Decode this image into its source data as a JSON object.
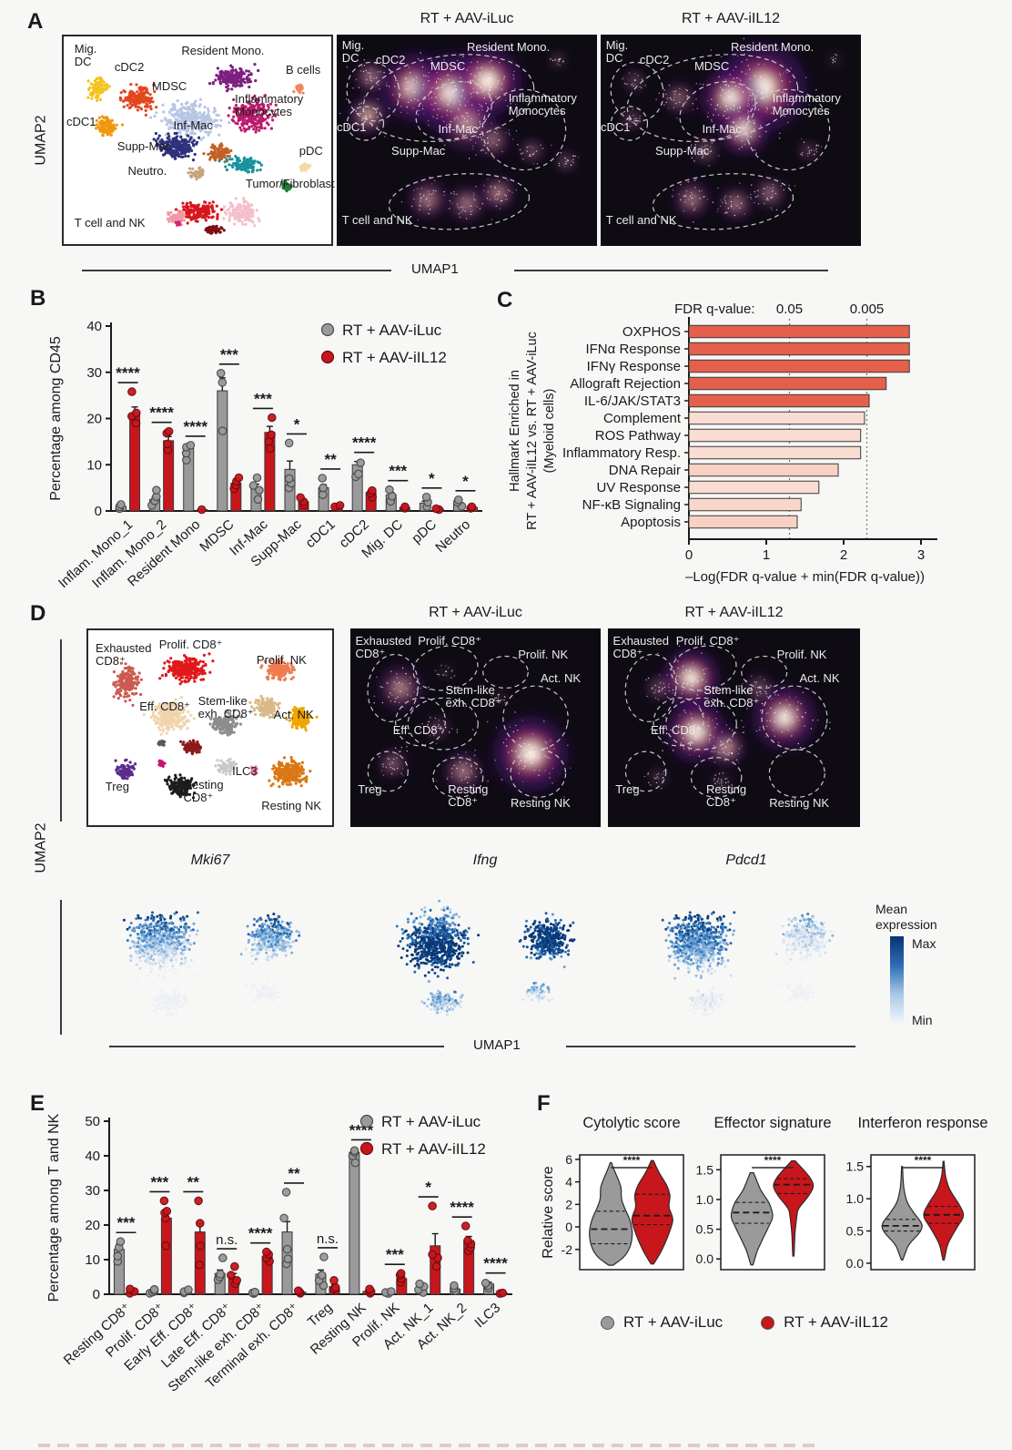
{
  "panelA": {
    "label": "A",
    "umap1": "UMAP1",
    "umap2": "UMAP2",
    "condition_titles": [
      "RT + AAV-iLuc",
      "RT + AAV-iIL12"
    ],
    "clusters": [
      {
        "label": "Mig. DC",
        "color": "#f2c41d"
      },
      {
        "label": "cDC2",
        "color": "#e2471f"
      },
      {
        "label": "Resident Mono.",
        "color": "#7e1f82"
      },
      {
        "label": "B cells",
        "color": "#ef8663"
      },
      {
        "label": "MDSC",
        "color": "#b9c5e4"
      },
      {
        "label": "Inflammatory Monocytes",
        "color": "#bc1a6c"
      },
      {
        "label": "cDC1",
        "color": "#f1970f"
      },
      {
        "label": "Inf-Mac",
        "color": "#c06026"
      },
      {
        "label": "Supp-Mac",
        "color": "#30317e"
      },
      {
        "label": "pDC",
        "color": "#f2d9a8"
      },
      {
        "label": "Neutro.",
        "color": "#c7a37b"
      },
      {
        "label": "Tumor/Fibroblast",
        "color": "#f4bfca"
      },
      {
        "label": "T cell and NK",
        "color": "#d8161e"
      }
    ]
  },
  "panelD": {
    "label": "D",
    "umap1": "UMAP1",
    "umap2": "UMAP2",
    "condition_titles": [
      "RT + AAV-iLuc",
      "RT + AAV-iIL12"
    ],
    "clusters": [
      {
        "label": "Exhausted CD8⁺",
        "color": "#cb5a52"
      },
      {
        "label": "Prolif. CD8⁺",
        "color": "#e0191c"
      },
      {
        "label": "Prolif. NK",
        "color": "#ef7b50"
      },
      {
        "label": "Eff. CD8⁺",
        "color": "#f0d4ab"
      },
      {
        "label": "Stem-like exh. CD8⁺",
        "color": "#8d8d8d"
      },
      {
        "label": "Act. NK",
        "color": "#f0a500"
      },
      {
        "label": "Treg",
        "color": "#5a2c8c"
      },
      {
        "label": "Resting CD8⁺",
        "color": "#1c1c1c"
      },
      {
        "label": "ILC3",
        "color": "#c9c9c9"
      },
      {
        "label": "Resting NK",
        "color": "#d97814"
      }
    ],
    "features": [
      "Mki67",
      "Ifng",
      "Pdcd1"
    ],
    "colorbar": {
      "title": "Mean expression",
      "max": "Max",
      "min": "Min"
    }
  },
  "chart_data": [
    {
      "id": "myeloid_composition",
      "panel_label": "B",
      "type": "bar",
      "ylabel": "Percentage among CD45",
      "ylim": [
        0,
        40
      ],
      "yticks": [
        0,
        10,
        20,
        30,
        40
      ],
      "legend": [
        "RT + AAV-iLuc",
        "RT + AAV-iIL12"
      ],
      "colors": [
        "#9a9a9a",
        "#c8161d"
      ],
      "categories": [
        "Inflam. Mono_1",
        "Inflam. Mono_2",
        "Resident Mono",
        "MDSC",
        "Inf-Mac",
        "Supp-Mac",
        "cDC1",
        "cDC2",
        "Mig. DC",
        "pDC",
        "Neutro"
      ],
      "series": [
        {
          "name": "RT + AAV-iLuc",
          "values": [
            1,
            2.5,
            13.5,
            26,
            5,
            9,
            5,
            10,
            3.5,
            1.7,
            1.8
          ],
          "errors": [
            0.3,
            0.6,
            0.6,
            2.8,
            0.8,
            1.8,
            0.7,
            0.7,
            0.5,
            0.4,
            0.3
          ],
          "dots": [
            [
              0.5,
              0.9,
              1.4
            ],
            [
              1.2,
              2.2,
              3.1,
              4.5
            ],
            [
              11,
              12.5,
              13.8,
              14.2
            ],
            [
              17.3,
              27.8,
              29.8
            ],
            [
              2.5,
              4.5,
              5.5,
              7.2
            ],
            [
              5,
              6,
              7,
              14.7
            ],
            [
              3.5,
              5,
              7.1
            ],
            [
              7.4,
              8,
              10.4
            ],
            [
              2.1,
              3.2,
              4.6
            ],
            [
              0.9,
              1.9,
              3
            ],
            [
              1,
              1.9,
              2.4
            ]
          ]
        },
        {
          "name": "RT + AAV-iIL12",
          "values": [
            21,
            15.2,
            0.3,
            6,
            17,
            2,
            1,
            4,
            0.8,
            0.4,
            0.8
          ],
          "errors": [
            1.5,
            0.9,
            0.1,
            0.5,
            1.3,
            0.4,
            0.2,
            0.5,
            0.2,
            0.1,
            0.2
          ],
          "dots": [
            [
              19,
              20.5,
              21.2,
              25.8
            ],
            [
              13.2,
              14.5,
              16.8,
              17.2
            ],
            [
              0.3
            ],
            [
              4.8,
              5.6,
              6.4,
              7.2
            ],
            [
              13.5,
              15,
              16.5,
              20.2
            ],
            [
              1.3,
              2,
              2.9
            ],
            [
              0.9,
              1.2
            ],
            [
              3,
              3.8,
              4.4
            ],
            [
              0.6,
              0.9
            ],
            [
              0.3,
              0.5
            ],
            [
              0.6,
              0.9
            ]
          ]
        }
      ],
      "significance": [
        "****",
        "****",
        "****",
        "***",
        "***",
        "*",
        "**",
        "****",
        "***",
        "*",
        "*"
      ]
    },
    {
      "id": "hallmark_enrichment",
      "panel_label": "C",
      "type": "bar_h",
      "ylabel_lines": [
        "Hallmark Enriched in",
        "RT + AAV-iIL12 vs. RT + AAV-iLuc",
        "(Myeloid cells)"
      ],
      "xlabel": "–Log(FDR q-value + min(FDR q-value))",
      "xlim": [
        0,
        3
      ],
      "xticks": [
        0,
        1,
        2,
        3
      ],
      "top_axis": {
        "label": "FDR q-value:",
        "ticks": [
          {
            "t": "0.05",
            "v": 1.3
          },
          {
            "t": "0.005",
            "v": 2.3
          }
        ]
      },
      "categories": [
        "OXPHOS",
        "IFNα Response",
        "IFNγ Response",
        "Allograft Rejection",
        "IL-6/JAK/STAT3",
        "Complement",
        "ROS Pathway",
        "Inflammatory Resp.",
        "DNA Repair",
        "UV Response",
        "NF-κB Signaling",
        "Apoptosis"
      ],
      "values": [
        2.85,
        2.85,
        2.85,
        2.55,
        2.33,
        2.27,
        2.22,
        2.22,
        1.93,
        1.68,
        1.45,
        1.4
      ],
      "bar_colors": [
        "#e4604a",
        "#e4604a",
        "#e4604a",
        "#e4604a",
        "#e4604a",
        "#f9ddd2",
        "#f9ddd2",
        "#f9ddd2",
        "#f7d2c2",
        "#f9ddd2",
        "#f9d8cb",
        "#f7d2c2"
      ]
    },
    {
      "id": "tnk_composition",
      "panel_label": "E",
      "type": "bar",
      "ylabel": "Percentage among T and NK",
      "ylim": [
        0,
        50
      ],
      "yticks": [
        0,
        10,
        20,
        30,
        40,
        50
      ],
      "legend": [
        "RT + AAV-iLuc",
        "RT + AAV-iIL12"
      ],
      "colors": [
        "#9a9a9a",
        "#c8161d"
      ],
      "categories": [
        "Resting CD8⁺",
        "Prolif. CD8⁺",
        "Early Eff. CD8⁺",
        "Late Eff. CD8⁺",
        "Stem-like exh. CD8⁺",
        "Terminal exh. CD8⁺",
        "Treg",
        "Resting NK",
        "Prolif. NK",
        "Act. NK_1",
        "Act. NK_2",
        "ILC3"
      ],
      "series": [
        {
          "name": "RT + AAV-iLuc",
          "values": [
            13,
            0.5,
            0.8,
            6,
            0.3,
            18,
            5.8,
            41,
            0.4,
            1,
            1.5,
            3
          ],
          "errors": [
            1.5,
            0.2,
            0.2,
            1,
            0.1,
            3,
            1.2,
            1,
            0.15,
            0.5,
            0.4,
            0.5
          ],
          "dots": [
            [
              9.5,
              11,
              13.5,
              15.2
            ],
            [
              0.3,
              0.6,
              1,
              1.4
            ],
            [
              0.4,
              0.8,
              1.3
            ],
            [
              4.2,
              5,
              5.8,
              10.5
            ],
            [
              0.2,
              0.4,
              0.6
            ],
            [
              8.8,
              10.2,
              13,
              22,
              29.5
            ],
            [
              2.5,
              4,
              5.5,
              10.8
            ],
            [
              38,
              40,
              41,
              41.5
            ],
            [
              0.2,
              0.5,
              0.8
            ],
            [
              0.5,
              1.3,
              2.2,
              3
            ],
            [
              1,
              1.7,
              2.5
            ],
            [
              1.8,
              2.5,
              3.2
            ]
          ]
        },
        {
          "name": "RT + AAV-iIL12",
          "values": [
            0.8,
            22,
            18,
            5,
            11,
            0.6,
            2.2,
            0.8,
            4.5,
            14,
            15.5,
            0.3
          ],
          "errors": [
            0.3,
            1.5,
            2.5,
            1,
            0.8,
            0.2,
            0.5,
            0.3,
            0.6,
            3.5,
            1.2,
            0.1
          ],
          "dots": [
            [
              0.3,
              0.8,
              1.5
            ],
            [
              14,
              22,
              23.5,
              24,
              27
            ],
            [
              8.5,
              14,
              20.5,
              27
            ],
            [
              3,
              4,
              5.5,
              8
            ],
            [
              9.5,
              10.5,
              11.5,
              12.2
            ],
            [
              0.3,
              0.6,
              1
            ],
            [
              1,
              1.5,
              2,
              4
            ],
            [
              0.3,
              0.8,
              1.5
            ],
            [
              3.5,
              4.5,
              5.5,
              6
            ],
            [
              8,
              10.5,
              11.5,
              25.5
            ],
            [
              12.5,
              13.5,
              14.5,
              15.5,
              19.7
            ],
            [
              0.2,
              0.4
            ]
          ]
        }
      ],
      "significance": [
        "***",
        "***",
        "**",
        "n.s.",
        "****",
        "**",
        "n.s.",
        "****",
        "***",
        "*",
        "****",
        "****"
      ]
    },
    {
      "id": "signature_scores",
      "panel_label": "F",
      "type": "violin",
      "ylabel": "Relative score",
      "legend": [
        "RT + AAV-iLuc",
        "RT + AAV-iIL12"
      ],
      "colors": [
        "#9a9a9a",
        "#c8161d"
      ],
      "plots": [
        {
          "title": "Cytolytic score",
          "sig": "****",
          "ylim": [
            -3.8,
            6.4
          ],
          "yticks": [
            {
              "v": -2,
              "t": "-2"
            },
            {
              "v": 0,
              "t": "0"
            },
            {
              "v": 2,
              "t": "2"
            },
            {
              "v": 4,
              "t": "4"
            },
            {
              "v": 6,
              "t": "6"
            }
          ],
          "violins": [
            {
              "median": -0.2,
              "q1": -1.5,
              "q3": 1.4,
              "profile": [
                [
                  -3.4,
                  0.1
                ],
                [
                  -2.6,
                  0.7
                ],
                [
                  -1.5,
                  0.95
                ],
                [
                  -0.3,
                  1.0
                ],
                [
                  0.8,
                  0.85
                ],
                [
                  1.8,
                  0.6
                ],
                [
                  2.6,
                  0.45
                ],
                [
                  3.5,
                  0.5
                ],
                [
                  4.4,
                  0.3
                ],
                [
                  5.2,
                  0.12
                ],
                [
                  5.7,
                  0.03
                ]
              ]
            },
            {
              "median": 1.0,
              "q1": 0.2,
              "q3": 2.9,
              "profile": [
                [
                  -3.3,
                  0.06
                ],
                [
                  -2.4,
                  0.35
                ],
                [
                  -1.4,
                  0.6
                ],
                [
                  -0.4,
                  0.8
                ],
                [
                  0.8,
                  1.0
                ],
                [
                  1.8,
                  0.7
                ],
                [
                  2.8,
                  0.85
                ],
                [
                  3.8,
                  0.65
                ],
                [
                  4.8,
                  0.3
                ],
                [
                  5.9,
                  0.05
                ]
              ]
            }
          ]
        },
        {
          "title": "Effector signature",
          "sig": "****",
          "ylim": [
            -0.18,
            1.75
          ],
          "yticks": [
            {
              "v": 0,
              "t": "0.0"
            },
            {
              "v": 0.5,
              "t": "0.5"
            },
            {
              "v": 1,
              "t": "1.0"
            },
            {
              "v": 1.5,
              "t": "1.5"
            }
          ],
          "violins": [
            {
              "median": 0.78,
              "q1": 0.6,
              "q3": 0.95,
              "profile": [
                [
                  -0.1,
                  0.05
                ],
                [
                  0.15,
                  0.25
                ],
                [
                  0.45,
                  0.65
                ],
                [
                  0.72,
                  1.0
                ],
                [
                  0.95,
                  0.8
                ],
                [
                  1.15,
                  0.4
                ],
                [
                  1.45,
                  0.08
                ]
              ]
            },
            {
              "median": 1.25,
              "q1": 1.1,
              "q3": 1.35,
              "profile": [
                [
                  0.05,
                  0.03
                ],
                [
                  0.45,
                  0.07
                ],
                [
                  0.85,
                  0.2
                ],
                [
                  1.05,
                  0.7
                ],
                [
                  1.25,
                  1.0
                ],
                [
                  1.45,
                  0.6
                ],
                [
                  1.65,
                  0.08
                ]
              ]
            }
          ]
        },
        {
          "title": "Interferon response",
          "sig": "****",
          "ylim": [
            -0.1,
            1.68
          ],
          "yticks": [
            {
              "v": 0,
              "t": "0.0"
            },
            {
              "v": 0.5,
              "t": "0.5"
            },
            {
              "v": 1,
              "t": "1.0"
            },
            {
              "v": 1.5,
              "t": "1.5"
            }
          ],
          "violins": [
            {
              "median": 0.58,
              "q1": 0.5,
              "q3": 0.68,
              "profile": [
                [
                  0.05,
                  0.03
                ],
                [
                  0.3,
                  0.3
                ],
                [
                  0.48,
                  0.85
                ],
                [
                  0.6,
                  1.0
                ],
                [
                  0.75,
                  0.6
                ],
                [
                  0.95,
                  0.2
                ],
                [
                  1.2,
                  0.06
                ],
                [
                  1.5,
                  0.02
                ]
              ]
            },
            {
              "median": 0.75,
              "q1": 0.62,
              "q3": 0.88,
              "profile": [
                [
                  0.05,
                  0.03
                ],
                [
                  0.3,
                  0.18
                ],
                [
                  0.55,
                  0.6
                ],
                [
                  0.75,
                  1.0
                ],
                [
                  0.95,
                  0.65
                ],
                [
                  1.15,
                  0.25
                ],
                [
                  1.35,
                  0.08
                ],
                [
                  1.58,
                  0.02
                ]
              ]
            }
          ]
        }
      ]
    }
  ]
}
